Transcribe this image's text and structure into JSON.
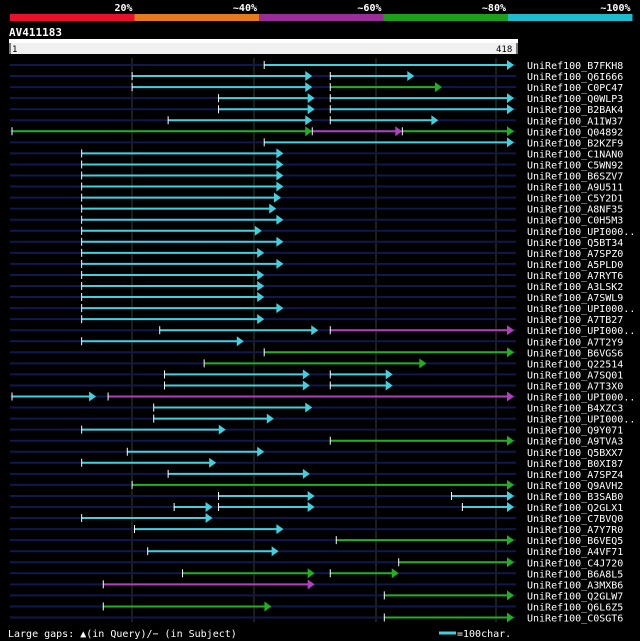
{
  "chart_data": {
    "type": "alignment-overview",
    "title": "AV411183",
    "scale": {
      "labels": [
        "20%",
        "~40%",
        "~60%",
        "~80%",
        "~100%"
      ],
      "colors": [
        "#e8102b",
        "#e87a1e",
        "#9b2d9b",
        "#1ca01c",
        "#1cbccc"
      ]
    },
    "query": {
      "start_label": "1",
      "end_label": "418",
      "length": 418
    },
    "legend": {
      "gaps": "Large gaps: ▲(in Query)/− (in Subject)",
      "unit": "=100char."
    },
    "colors": {
      "cyan": "#40d0e0",
      "green": "#20b020",
      "magenta": "#b040c0",
      "track": "#101850",
      "grid": "#304030",
      "white": "#ffffff"
    },
    "hits": [
      {
        "name": "UniRef100_B7FKH8",
        "segments": [
          [
            210,
            418,
            "cyan"
          ]
        ]
      },
      {
        "name": "UniRef100_Q6I666",
        "segments": [
          [
            100,
            250,
            "cyan"
          ],
          [
            265,
            335,
            "cyan"
          ]
        ]
      },
      {
        "name": "UniRef100_C0PC47",
        "segments": [
          [
            100,
            250,
            "cyan"
          ],
          [
            265,
            358,
            "green"
          ]
        ]
      },
      {
        "name": "UniRef100_Q0WLP3",
        "segments": [
          [
            172,
            252,
            "cyan"
          ],
          [
            265,
            418,
            "cyan"
          ]
        ]
      },
      {
        "name": "UniRef100_B2BAK4",
        "segments": [
          [
            172,
            252,
            "cyan"
          ],
          [
            265,
            418,
            "cyan"
          ]
        ]
      },
      {
        "name": "UniRef100_A1IW37",
        "segments": [
          [
            130,
            250,
            "cyan"
          ],
          [
            265,
            355,
            "cyan"
          ]
        ]
      },
      {
        "name": "UniRef100_Q04892",
        "segments": [
          [
            0,
            250,
            "green"
          ],
          [
            250,
            325,
            "magenta"
          ],
          [
            325,
            418,
            "green"
          ]
        ]
      },
      {
        "name": "UniRef100_B2KZF9",
        "segments": [
          [
            210,
            418,
            "cyan"
          ]
        ]
      },
      {
        "name": "UniRef100_C1NAN0",
        "segments": [
          [
            58,
            226,
            "cyan"
          ]
        ]
      },
      {
        "name": "UniRef100_C5WN92",
        "segments": [
          [
            58,
            226,
            "cyan"
          ]
        ]
      },
      {
        "name": "UniRef100_B6SZV7",
        "segments": [
          [
            58,
            226,
            "cyan"
          ]
        ]
      },
      {
        "name": "UniRef100_A9U511",
        "segments": [
          [
            58,
            226,
            "cyan"
          ]
        ]
      },
      {
        "name": "UniRef100_C5Y2D1",
        "segments": [
          [
            58,
            224,
            "cyan"
          ]
        ]
      },
      {
        "name": "UniRef100_A8NF35",
        "segments": [
          [
            58,
            220,
            "cyan"
          ]
        ]
      },
      {
        "name": "UniRef100_C0H5M3",
        "segments": [
          [
            58,
            226,
            "cyan"
          ]
        ]
      },
      {
        "name": "UniRef100_UPI000..",
        "segments": [
          [
            58,
            208,
            "cyan"
          ]
        ]
      },
      {
        "name": "UniRef100_Q5BT34",
        "segments": [
          [
            58,
            226,
            "cyan"
          ]
        ]
      },
      {
        "name": "UniRef100_A7SPZ0",
        "segments": [
          [
            58,
            210,
            "cyan"
          ]
        ]
      },
      {
        "name": "UniRef100_A5PLD0",
        "segments": [
          [
            58,
            226,
            "cyan"
          ]
        ]
      },
      {
        "name": "UniRef100_A7RYT6",
        "segments": [
          [
            58,
            210,
            "cyan"
          ]
        ]
      },
      {
        "name": "UniRef100_A3LSK2",
        "segments": [
          [
            58,
            210,
            "cyan"
          ]
        ]
      },
      {
        "name": "UniRef100_A7SWL9",
        "segments": [
          [
            58,
            210,
            "cyan"
          ]
        ]
      },
      {
        "name": "UniRef100_UPI000..",
        "segments": [
          [
            58,
            226,
            "cyan"
          ]
        ]
      },
      {
        "name": "UniRef100_A7TB27",
        "segments": [
          [
            58,
            210,
            "cyan"
          ]
        ]
      },
      {
        "name": "UniRef100_UPI000..",
        "segments": [
          [
            123,
            255,
            "cyan"
          ],
          [
            265,
            418,
            "magenta"
          ]
        ]
      },
      {
        "name": "UniRef100_A7T2Y9",
        "segments": [
          [
            58,
            193,
            "cyan"
          ]
        ]
      },
      {
        "name": "UniRef100_B6VGS6",
        "segments": [
          [
            210,
            418,
            "green"
          ]
        ]
      },
      {
        "name": "UniRef100_Q22514",
        "segments": [
          [
            160,
            345,
            "green"
          ]
        ]
      },
      {
        "name": "UniRef100_A7SQ01",
        "segments": [
          [
            127,
            248,
            "cyan"
          ],
          [
            265,
            317,
            "cyan"
          ]
        ]
      },
      {
        "name": "UniRef100_A7T3X0",
        "segments": [
          [
            127,
            248,
            "cyan"
          ],
          [
            265,
            317,
            "cyan"
          ]
        ]
      },
      {
        "name": "UniRef100_UPI000..",
        "segments": [
          [
            0,
            70,
            "cyan"
          ],
          [
            80,
            418,
            "magenta"
          ]
        ]
      },
      {
        "name": "UniRef100_B4XZC3",
        "segments": [
          [
            118,
            250,
            "cyan"
          ]
        ]
      },
      {
        "name": "UniRef100_UPI000..",
        "segments": [
          [
            118,
            218,
            "cyan"
          ]
        ]
      },
      {
        "name": "UniRef100_Q9Y071",
        "segments": [
          [
            58,
            178,
            "cyan"
          ]
        ]
      },
      {
        "name": "UniRef100_A9TVA3",
        "segments": [
          [
            265,
            418,
            "green"
          ]
        ]
      },
      {
        "name": "UniRef100_Q5BXX7",
        "segments": [
          [
            96,
            210,
            "cyan"
          ]
        ]
      },
      {
        "name": "UniRef100_B0XI87",
        "segments": [
          [
            58,
            170,
            "cyan"
          ]
        ]
      },
      {
        "name": "UniRef100_A7SPZ4",
        "segments": [
          [
            130,
            248,
            "cyan"
          ]
        ]
      },
      {
        "name": "UniRef100_Q9AVH2",
        "segments": [
          [
            100,
            418,
            "green"
          ]
        ]
      },
      {
        "name": "UniRef100_B3SAB0",
        "segments": [
          [
            172,
            252,
            "cyan"
          ],
          [
            366,
            418,
            "cyan"
          ]
        ]
      },
      {
        "name": "UniRef100_Q2GLX1",
        "segments": [
          [
            135,
            167,
            "cyan"
          ],
          [
            172,
            252,
            "cyan"
          ],
          [
            375,
            418,
            "cyan"
          ]
        ]
      },
      {
        "name": "UniRef100_C7BVQ0",
        "segments": [
          [
            58,
            167,
            "cyan"
          ]
        ]
      },
      {
        "name": "UniRef100_A7Y7R0",
        "segments": [
          [
            102,
            226,
            "cyan"
          ]
        ]
      },
      {
        "name": "UniRef100_B6VEQ5",
        "segments": [
          [
            270,
            418,
            "green"
          ]
        ]
      },
      {
        "name": "UniRef100_A4VF71",
        "segments": [
          [
            113,
            222,
            "cyan"
          ]
        ]
      },
      {
        "name": "UniRef100_C4J720",
        "segments": [
          [
            322,
            418,
            "green"
          ]
        ]
      },
      {
        "name": "UniRef100_B6A8L5",
        "segments": [
          [
            142,
            252,
            "green"
          ],
          [
            265,
            322,
            "green"
          ]
        ]
      },
      {
        "name": "UniRef100_A3MXB6",
        "segments": [
          [
            76,
            252,
            "magenta"
          ]
        ]
      },
      {
        "name": "UniRef100_Q2GLW7",
        "segments": [
          [
            310,
            418,
            "green"
          ]
        ]
      },
      {
        "name": "UniRef100_Q6L6Z5",
        "segments": [
          [
            76,
            216,
            "green"
          ]
        ]
      },
      {
        "name": "UniRef100_C0SGT6",
        "segments": [
          [
            310,
            418,
            "green"
          ]
        ]
      }
    ]
  }
}
